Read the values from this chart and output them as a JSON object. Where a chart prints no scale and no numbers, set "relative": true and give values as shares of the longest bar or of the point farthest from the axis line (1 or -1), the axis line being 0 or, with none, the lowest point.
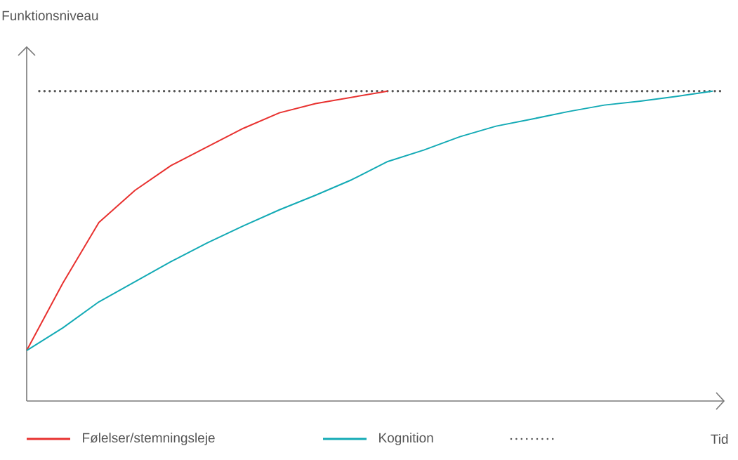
{
  "chart_data": {
    "type": "line",
    "relative": true,
    "annotations": [
      "Funktionsniveau"
    ],
    "xlabel": "Tid",
    "categories": [
      null,
      null,
      null,
      null,
      null,
      null,
      null,
      null,
      null,
      null,
      null,
      null,
      null,
      null,
      null,
      null,
      null,
      null,
      null,
      null
    ],
    "series": [
      {
        "name": "Følelser/stemningsleje",
        "color": "#e8312f",
        "values": [
          0.163,
          0.38,
          0.576,
          0.68,
          0.76,
          0.82,
          0.88,
          0.93,
          0.96,
          0.98,
          1.0,
          null,
          null,
          null,
          null,
          null,
          null,
          null,
          null,
          null
        ]
      },
      {
        "name": "Kognition",
        "color": "#13aab5",
        "values": [
          0.163,
          0.236,
          0.32,
          0.385,
          0.45,
          0.51,
          0.565,
          0.617,
          0.664,
          0.714,
          0.773,
          0.81,
          0.853,
          0.887,
          0.91,
          0.934,
          0.955,
          0.968,
          0.983,
          1.0
        ]
      }
    ],
    "ref_lines": [
      {
        "axis": "y",
        "value": 1.0,
        "color": "#555555",
        "line_style": "dotted"
      }
    ],
    "legend": "bottom",
    "grid": false,
    "marker": "none",
    "line_style": "solid"
  }
}
